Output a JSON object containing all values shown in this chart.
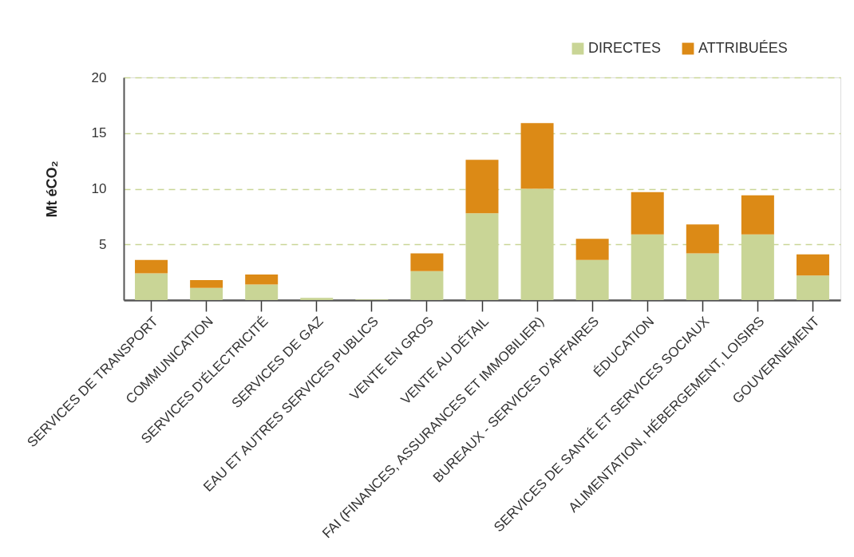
{
  "chart_data": {
    "type": "bar",
    "stacked": true,
    "ylabel": "Mt éCO₂",
    "categories": [
      "SERVICES DE TRANSPORT",
      "COMMUNICATION",
      "SERVICES D'ÉLECTRICITÉ",
      "SERVICES DE GAZ",
      "EAU ET AUTRES SERVICES PUBLICS",
      "VENTE EN GROS",
      "VENTE AU DÉTAIL",
      "FAI (FINANCES, ASSURANCES ET IMMOBILIER)",
      "BUREAUX - SERVICES D'AFFAIRES",
      "ÉDUCATION",
      "SERVICES DE SANTÉ ET SERVICES SOCIAUX",
      "ALIMENTATION, HÉBERGEMENT, LOISIRS",
      "GOUVERNEMENT"
    ],
    "series": [
      {
        "name": "DIRECTES",
        "color": "#c9d596",
        "values": [
          2.4,
          1.1,
          1.4,
          0.2,
          0.05,
          2.6,
          7.8,
          10.0,
          3.6,
          5.9,
          4.2,
          5.9,
          2.2
        ]
      },
      {
        "name": "ATTRIBUÉES",
        "color": "#dc8a16",
        "values": [
          1.2,
          0.7,
          0.9,
          null,
          null,
          1.6,
          4.8,
          5.9,
          1.9,
          3.8,
          2.6,
          3.5,
          1.9
        ]
      }
    ],
    "ylim": [
      0,
      20
    ],
    "yticks": [
      5,
      10,
      15,
      20
    ],
    "grid": "y",
    "legend": "top right"
  }
}
